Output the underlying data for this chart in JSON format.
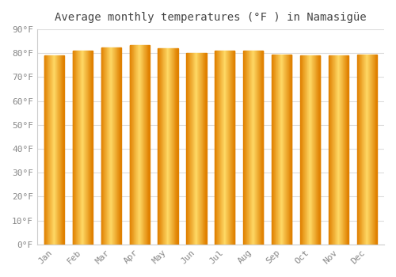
{
  "title": "Average monthly temperatures (°F ) in Namasigüe",
  "months": [
    "Jan",
    "Feb",
    "Mar",
    "Apr",
    "May",
    "Jun",
    "Jul",
    "Aug",
    "Sep",
    "Oct",
    "Nov",
    "Dec"
  ],
  "values": [
    79.0,
    81.0,
    82.5,
    83.5,
    82.0,
    80.0,
    81.0,
    81.0,
    79.5,
    79.0,
    79.0,
    79.5
  ],
  "bar_color_center": "#FFD966",
  "bar_color_edge": "#E08000",
  "background_color": "#FFFFFF",
  "grid_color": "#DDDDDD",
  "ylim": [
    0,
    90
  ],
  "ytick_step": 10,
  "title_fontsize": 10,
  "tick_fontsize": 8,
  "bar_width": 0.7
}
